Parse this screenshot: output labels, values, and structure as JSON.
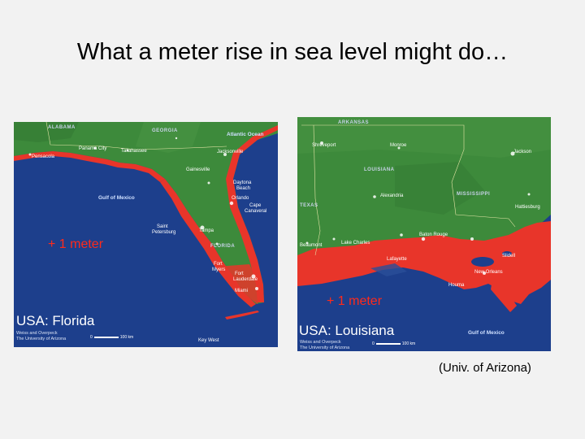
{
  "slide": {
    "title": "What a meter rise in sea level might do…",
    "source": "(Univ. of Arizona)"
  },
  "maps": {
    "florida": {
      "region_title": "USA: Florida",
      "overlay_label": "+ 1 meter",
      "credit_line1": "Weiss and Overpeck",
      "credit_line2": "The University of Arizona",
      "scale_start": "0",
      "scale_end": "100 km",
      "labels": {
        "alabama": "ALABAMA",
        "georgia": "GEORGIA",
        "florida_state": "FLORIDA",
        "atlantic": "Atlantic Ocean",
        "gulf": "Gulf of Mexico",
        "pensacola": "Pensacola",
        "panama_city": "Panama City",
        "tallahassee": "Tallahassee",
        "jacksonville": "Jacksonville",
        "gainesville": "Gainesville",
        "daytona": "Daytona",
        "daytona2": "Beach",
        "orlando": "Orlando",
        "cape": "Cape",
        "canaveral": "Canaveral",
        "tampa": "Tampa",
        "saint": "Saint",
        "petersburg": "Petersburg",
        "fort_myers1": "Fort",
        "fort_myers2": "Myers",
        "fort_laud1": "Fort",
        "fort_laud2": "Lauderdale",
        "miami": "Miami",
        "key_west": "Key West"
      }
    },
    "louisiana": {
      "region_title": "USA: Louisiana",
      "overlay_label": "+ 1 meter",
      "credit_line1": "Weiss and Overpeck",
      "credit_line2": "The University of Arizona",
      "scale_start": "0",
      "scale_end": "100 km",
      "labels": {
        "arkansas": "ARKANSAS",
        "louisiana_state": "LOUISIANA",
        "mississippi": "MISSISSIPPI",
        "texas": "TEXAS",
        "gulf": "Gulf of Mexico",
        "shreveport": "Shreveport",
        "monroe": "Monroe",
        "jackson": "Jackson",
        "alexandria": "Alexandria",
        "hattiesburg": "Hattiesburg",
        "beaumont": "Beaumont",
        "lake_charles": "Lake Charles",
        "baton_rouge": "Baton Rouge",
        "lafayette": "Lafayette",
        "slidell": "Slidell",
        "new_orleans": "New Orleans",
        "houma": "Houma"
      }
    }
  },
  "colors": {
    "ocean": "#1d3f8c",
    "land": "#3d8a3b",
    "flood": "#e8352a",
    "meter_label": "#ff2a1a"
  }
}
